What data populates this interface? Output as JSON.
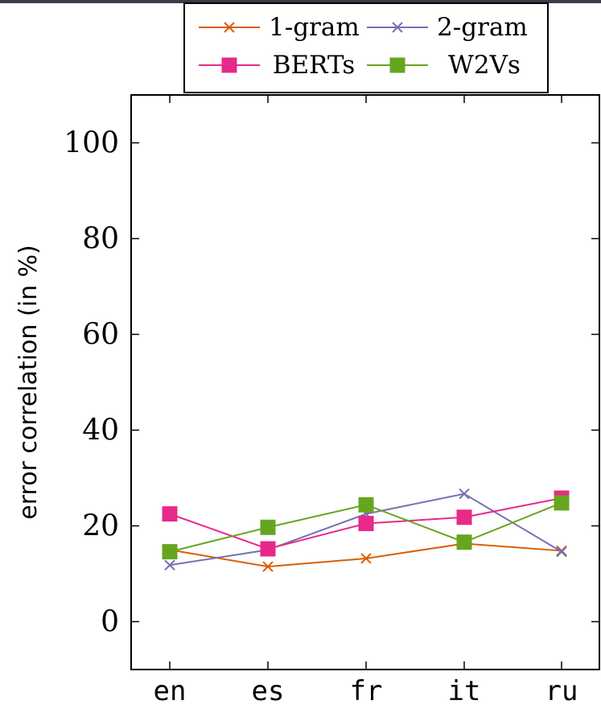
{
  "chart_data": {
    "type": "line",
    "categories": [
      "en",
      "es",
      "fr",
      "it",
      "ru"
    ],
    "ylabel": "error correlation (in %)",
    "xlabel": "",
    "ylim": [
      -10,
      110
    ],
    "yticks": [
      0,
      20,
      40,
      60,
      80,
      100
    ],
    "grid": false,
    "legend_position": "top",
    "series": [
      {
        "name": "1-gram",
        "marker": "cross",
        "color": "#d95f02",
        "values": [
          15.0,
          11.5,
          13.2,
          16.3,
          14.8
        ]
      },
      {
        "name": "2-gram",
        "marker": "cross",
        "color": "#7570b3",
        "values": [
          11.8,
          15.0,
          22.5,
          26.7,
          14.6
        ]
      },
      {
        "name": "BERTs",
        "marker": "square",
        "color": "#e7298a",
        "values": [
          22.5,
          15.2,
          20.5,
          21.8,
          25.8
        ]
      },
      {
        "name": "W2Vs",
        "marker": "square",
        "color": "#66a61e",
        "values": [
          14.6,
          19.7,
          24.4,
          16.6,
          24.8
        ]
      }
    ]
  }
}
